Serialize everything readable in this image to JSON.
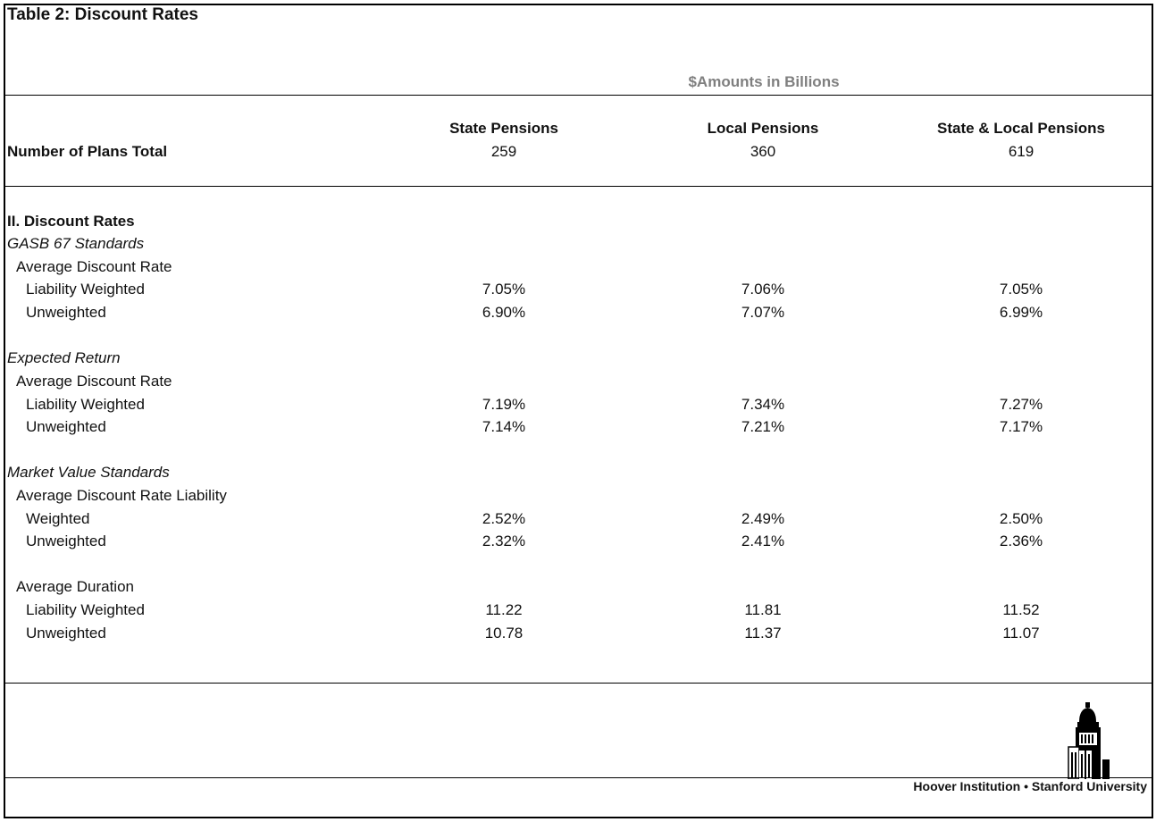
{
  "title": "Table 2: Discount Rates",
  "units_note": "$Amounts in Billions",
  "columns": [
    "State Pensions",
    "Local Pensions",
    "State & Local Pensions"
  ],
  "plans_row": {
    "label": "Number of Plans Total",
    "values": [
      "259",
      "360",
      "619"
    ]
  },
  "section_heading": "II. Discount Rates",
  "rows": [
    {
      "label": "GASB 67 Standards",
      "style": "italic",
      "indent": 0,
      "values": [
        "",
        "",
        ""
      ]
    },
    {
      "label": "Average Discount Rate",
      "style": "normal",
      "indent": 1,
      "values": [
        "",
        "",
        ""
      ]
    },
    {
      "label": "Liability Weighted",
      "style": "normal",
      "indent": 2,
      "values": [
        "7.05%",
        "7.06%",
        "7.05%"
      ]
    },
    {
      "label": "Unweighted",
      "style": "normal",
      "indent": 2,
      "values": [
        "6.90%",
        "7.07%",
        "6.99%"
      ]
    },
    {
      "label": "Expected Return",
      "style": "italic",
      "indent": 0,
      "values": [
        "",
        "",
        ""
      ]
    },
    {
      "label": "Average Discount Rate",
      "style": "normal",
      "indent": 1,
      "values": [
        "",
        "",
        ""
      ]
    },
    {
      "label": "Liability Weighted",
      "style": "normal",
      "indent": 2,
      "values": [
        "7.19%",
        "7.34%",
        "7.27%"
      ]
    },
    {
      "label": "Unweighted",
      "style": "normal",
      "indent": 2,
      "values": [
        "7.14%",
        "7.21%",
        "7.17%"
      ]
    },
    {
      "label": "Market Value Standards",
      "style": "italic",
      "indent": 0,
      "values": [
        "",
        "",
        ""
      ]
    },
    {
      "label": "Average Discount Rate Liability",
      "style": "normal",
      "indent": 1,
      "values": [
        "",
        "",
        ""
      ]
    },
    {
      "label": "Weighted",
      "style": "normal",
      "indent": 2,
      "values": [
        "2.52%",
        "2.49%",
        "2.50%"
      ]
    },
    {
      "label": "Unweighted",
      "style": "normal",
      "indent": 2,
      "values": [
        "2.32%",
        "2.41%",
        "2.36%"
      ]
    },
    {
      "label": "Average Duration",
      "style": "normal",
      "indent": 1,
      "values": [
        "",
        "",
        ""
      ]
    },
    {
      "label": "Liability Weighted",
      "style": "normal",
      "indent": 2,
      "values": [
        "11.22",
        "11.81",
        "11.52"
      ]
    },
    {
      "label": "Unweighted",
      "style": "normal",
      "indent": 2,
      "values": [
        "10.78",
        "11.37",
        "11.07"
      ]
    }
  ],
  "footer": "Hoover Institution • Stanford University",
  "logo_icon": "hoover-tower-icon"
}
